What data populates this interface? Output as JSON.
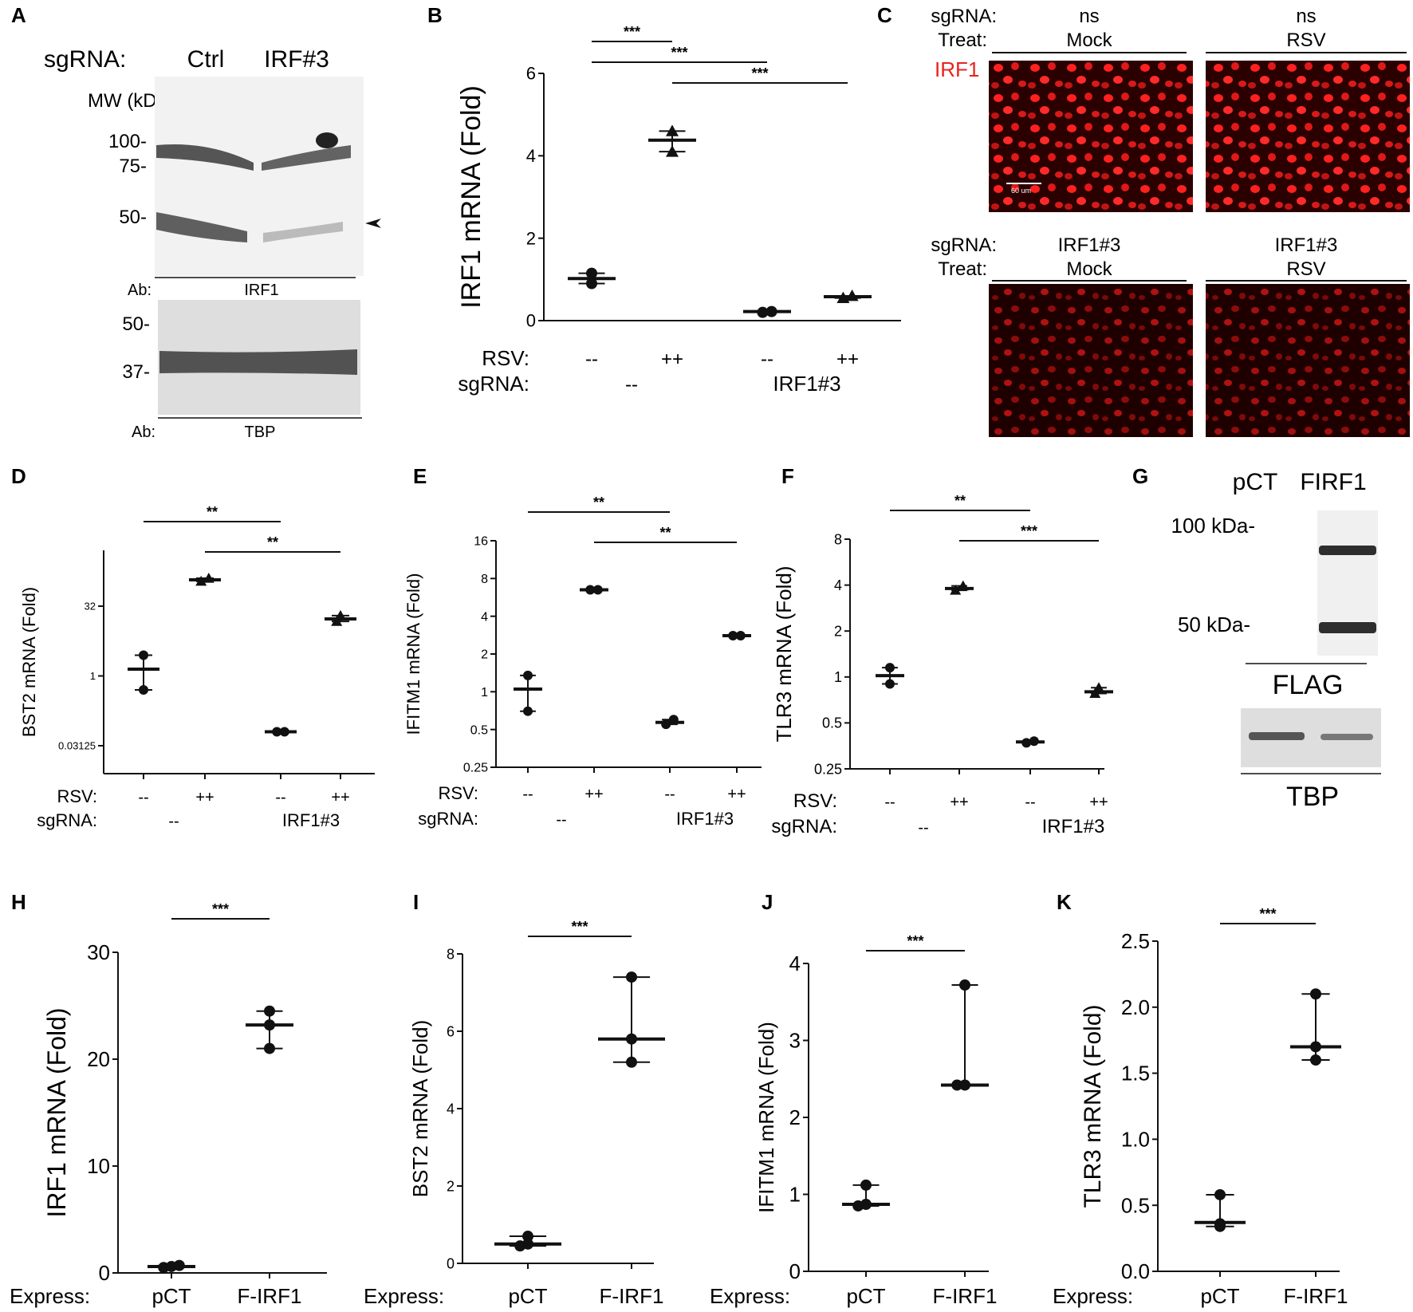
{
  "panel_letters": [
    "A",
    "B",
    "C",
    "D",
    "E",
    "F",
    "G",
    "H",
    "I",
    "J",
    "K"
  ],
  "colors": {
    "ink": "#111111",
    "blot_bg": "#f2f2f2",
    "blot_band": "#3a3a3a",
    "tbp_bg": "#dedede",
    "if_bg": "#2a0000",
    "if_nuclei": "#ff2020",
    "irf1_label": "#e8241c"
  },
  "panel_a": {
    "sgrna_label": "sgRNA:",
    "lane1": "Ctrl",
    "lane2": "IRF#3",
    "mw_label": "MW (kDa)",
    "markers_top": [
      "100-",
      "75-",
      "50-"
    ],
    "ab_label": "Ab:",
    "ab_top": "IRF1",
    "markers_bottom": [
      "50-",
      "37-"
    ],
    "ab_bottom": "TBP"
  },
  "panel_c": {
    "sgrna_label": "sgRNA:",
    "treat_label": "Treat:",
    "top_sgrna": [
      "ns",
      "ns"
    ],
    "top_treat": [
      "Mock",
      "RSV"
    ],
    "bottom_sgrna": [
      "IRF1#3",
      "IRF1#3"
    ],
    "bottom_treat": [
      "Mock",
      "RSV"
    ],
    "stain_label": "IRF1",
    "scalebar_label": "60 um"
  },
  "panel_g": {
    "lane1": "pCT",
    "lane2": "FIRF1",
    "marker1": "100 kDa-",
    "marker2": "50 kDa-",
    "ab1": "FLAG",
    "ab2": "TBP"
  },
  "knockdown_row_labels": {
    "rsv": "RSV:",
    "sgrna": "sgRNA:",
    "rsv_values": [
      "--",
      "++",
      "--",
      "++"
    ],
    "sgrna_values": [
      "--",
      "IRF1#3"
    ]
  },
  "express_labels": {
    "label": "Express:",
    "values": [
      "pCT",
      "F-IRF1"
    ]
  },
  "chart_data": [
    {
      "panel": "B",
      "type": "scatter",
      "ylabel": "IRF1 mRNA  (Fold)",
      "ylim": [
        0,
        6
      ],
      "yticks": [
        0,
        2,
        4,
        6
      ],
      "scale": "linear",
      "groups": [
        {
          "points": [
            0.9,
            1.15
          ],
          "mean": 1.02,
          "marker": "circle"
        },
        {
          "points": [
            4.1,
            4.6
          ],
          "mean": 4.38,
          "marker": "triangle"
        },
        {
          "points": [
            0.2,
            0.22
          ],
          "mean": 0.22,
          "marker": "circle"
        },
        {
          "points": [
            0.55,
            0.6
          ],
          "mean": 0.58,
          "marker": "triangle"
        }
      ],
      "significance": [
        {
          "from": 0,
          "to": 1,
          "label": "***"
        },
        {
          "from": 0,
          "to": 2,
          "label": "***"
        },
        {
          "from": 1,
          "to": 3,
          "label": "***"
        }
      ]
    },
    {
      "panel": "D",
      "type": "scatter",
      "ylabel": "BST2 mRNA (Fold)",
      "ylim": [
        0.0078125,
        512
      ],
      "yticks": [
        0.03125,
        1,
        32
      ],
      "ytick_labels": [
        "0.03125",
        "1",
        "32"
      ],
      "scale": "log2",
      "groups": [
        {
          "points": [
            0.5,
            2.8
          ],
          "mean": 1.4,
          "marker": "circle"
        },
        {
          "points": [
            110,
            128
          ],
          "mean": 118,
          "marker": "triangle"
        },
        {
          "points": [
            0.0625,
            0.0625
          ],
          "mean": 0.0625,
          "marker": "circle"
        },
        {
          "points": [
            15,
            20
          ],
          "mean": 17,
          "marker": "triangle"
        }
      ],
      "significance": [
        {
          "from": 0,
          "to": 2,
          "label": "**"
        },
        {
          "from": 1,
          "to": 3,
          "label": "**"
        }
      ]
    },
    {
      "panel": "E",
      "type": "scatter",
      "ylabel": "IFITM1 mRNA  (Fold)",
      "ylim": [
        0.25,
        16
      ],
      "yticks": [
        0.25,
        0.5,
        1,
        2,
        4,
        8,
        16
      ],
      "ytick_labels": [
        "0.25",
        "0.5",
        "1",
        "2",
        "4",
        "8",
        "16"
      ],
      "scale": "log2",
      "groups": [
        {
          "points": [
            0.7,
            1.35
          ],
          "mean": 1.05,
          "marker": "circle"
        },
        {
          "points": [
            6.5,
            6.5
          ],
          "mean": 6.5,
          "marker": "circle"
        },
        {
          "points": [
            0.55,
            0.6
          ],
          "mean": 0.57,
          "marker": "circle"
        },
        {
          "points": [
            2.8,
            2.8
          ],
          "mean": 2.8,
          "marker": "circle"
        }
      ],
      "significance": [
        {
          "from": 0,
          "to": 2,
          "label": "**"
        },
        {
          "from": 1,
          "to": 3,
          "label": "**"
        }
      ]
    },
    {
      "panel": "F",
      "type": "scatter",
      "ylabel": "TLR3 mRNA (Fold)",
      "ylim": [
        0.25,
        8
      ],
      "yticks": [
        0.25,
        0.5,
        1,
        2,
        4,
        8
      ],
      "ytick_labels": [
        "0.25",
        "0.5",
        "1",
        "2",
        "4",
        "8"
      ],
      "scale": "log2",
      "groups": [
        {
          "points": [
            0.9,
            1.15
          ],
          "mean": 1.02,
          "marker": "circle"
        },
        {
          "points": [
            3.7,
            3.95
          ],
          "mean": 3.8,
          "marker": "triangle"
        },
        {
          "points": [
            0.37,
            0.38
          ],
          "mean": 0.375,
          "marker": "circle"
        },
        {
          "points": [
            0.78,
            0.85
          ],
          "mean": 0.8,
          "marker": "triangle"
        }
      ],
      "significance": [
        {
          "from": 0,
          "to": 2,
          "label": "**"
        },
        {
          "from": 1,
          "to": 3,
          "label": "***"
        }
      ]
    },
    {
      "panel": "H",
      "type": "scatter",
      "ylabel": "IRF1 mRNA  (Fold)",
      "ylim": [
        0,
        30
      ],
      "yticks": [
        0,
        10,
        20,
        30
      ],
      "scale": "linear",
      "groups": [
        {
          "points": [
            0.5,
            0.6,
            0.7
          ],
          "mean": 0.6,
          "marker": "circle"
        },
        {
          "points": [
            21.0,
            23.2,
            24.5
          ],
          "mean": 23.2,
          "marker": "circle"
        }
      ],
      "significance": [
        {
          "from": 0,
          "to": 1,
          "label": "***"
        }
      ]
    },
    {
      "panel": "I",
      "type": "scatter",
      "ylabel": "BST2 mRNA (Fold)",
      "ylim": [
        0,
        8
      ],
      "yticks": [
        0,
        2,
        4,
        6,
        8
      ],
      "scale": "linear",
      "groups": [
        {
          "points": [
            0.45,
            0.5,
            0.7
          ],
          "mean": 0.5,
          "marker": "circle"
        },
        {
          "points": [
            5.2,
            5.8,
            7.4
          ],
          "mean": 5.8,
          "marker": "circle"
        }
      ],
      "significance": [
        {
          "from": 0,
          "to": 1,
          "label": "***"
        }
      ]
    },
    {
      "panel": "J",
      "type": "scatter",
      "ylabel": "IFITM1 mRNA  (Fold)",
      "ylim": [
        0,
        4
      ],
      "yticks": [
        0,
        1,
        2,
        3,
        4
      ],
      "scale": "linear",
      "groups": [
        {
          "points": [
            0.85,
            0.87,
            1.12
          ],
          "mean": 0.87,
          "marker": "circle"
        },
        {
          "points": [
            2.42,
            2.42,
            3.72
          ],
          "mean": 2.42,
          "marker": "circle"
        }
      ],
      "significance": [
        {
          "from": 0,
          "to": 1,
          "label": "***"
        }
      ]
    },
    {
      "panel": "K",
      "type": "scatter",
      "ylabel": "TLR3 mRNA (Fold)",
      "ylim": [
        0,
        2.5
      ],
      "yticks": [
        0.0,
        0.5,
        1.0,
        1.5,
        2.0,
        2.5
      ],
      "ytick_labels": [
        "0.0",
        "0.5",
        "1.0",
        "1.5",
        "2.0",
        "2.5"
      ],
      "scale": "linear",
      "groups": [
        {
          "points": [
            0.34,
            0.36,
            0.58
          ],
          "mean": 0.37,
          "marker": "circle"
        },
        {
          "points": [
            1.6,
            1.7,
            2.1
          ],
          "mean": 1.7,
          "marker": "circle"
        }
      ],
      "significance": [
        {
          "from": 0,
          "to": 1,
          "label": "***"
        }
      ]
    }
  ]
}
